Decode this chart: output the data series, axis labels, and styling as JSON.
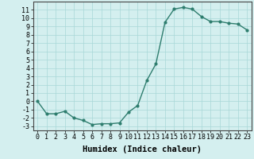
{
  "x": [
    0,
    1,
    2,
    3,
    4,
    5,
    6,
    7,
    8,
    9,
    10,
    11,
    12,
    13,
    14,
    15,
    16,
    17,
    18,
    19,
    20,
    21,
    22,
    23
  ],
  "y": [
    0,
    -1.5,
    -1.5,
    -1.2,
    -2,
    -2.3,
    -2.8,
    -2.7,
    -2.7,
    -2.6,
    -1.3,
    -0.5,
    2.5,
    4.5,
    9.5,
    11.1,
    11.3,
    11.1,
    10.2,
    9.6,
    9.6,
    9.4,
    9.3,
    8.6
  ],
  "xlabel": "Humidex (Indice chaleur)",
  "xlim": [
    -0.5,
    23.5
  ],
  "ylim": [
    -3.5,
    12.0
  ],
  "yticks": [
    -3,
    -2,
    -1,
    0,
    1,
    2,
    3,
    4,
    5,
    6,
    7,
    8,
    9,
    10,
    11
  ],
  "xticks": [
    0,
    1,
    2,
    3,
    4,
    5,
    6,
    7,
    8,
    9,
    10,
    11,
    12,
    13,
    14,
    15,
    16,
    17,
    18,
    19,
    20,
    21,
    22,
    23
  ],
  "line_color": "#2e7d6e",
  "marker": "o",
  "marker_size": 2.0,
  "linewidth": 1.0,
  "bg_color": "#d4efef",
  "grid_color": "#a8d8d8",
  "xlabel_fontsize": 7.5,
  "tick_fontsize": 6.0
}
